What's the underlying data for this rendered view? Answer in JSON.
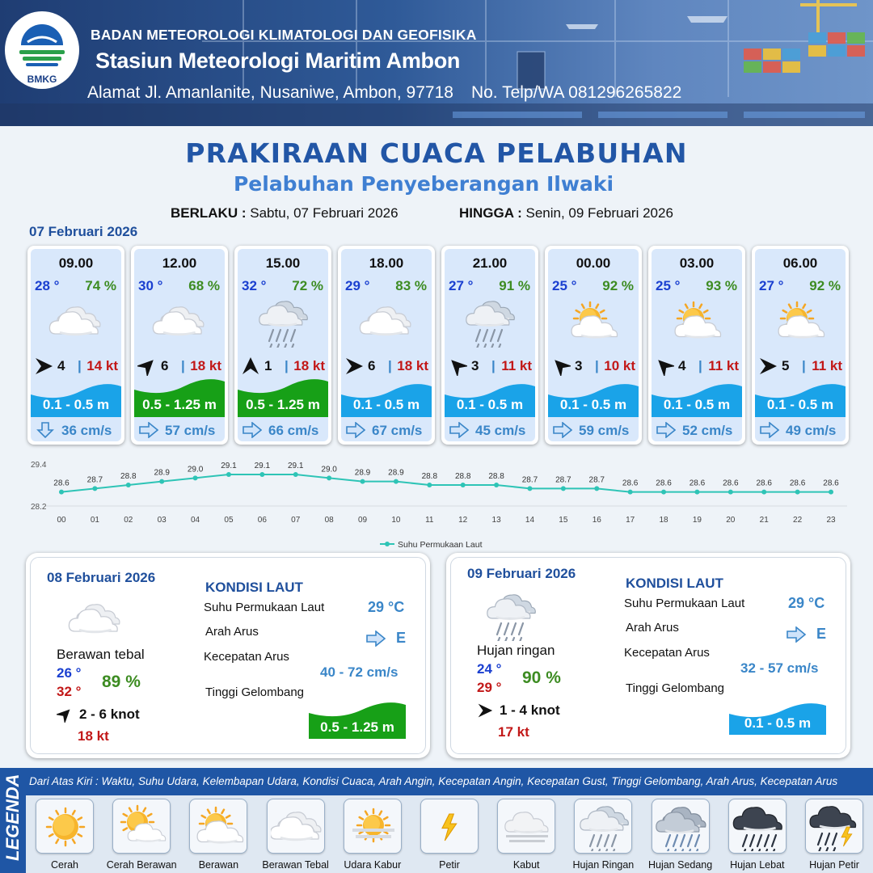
{
  "header": {
    "agency": "BADAN METEOROLOGI KLIMATOLOGI DAN GEOFISIKA",
    "station": "Stasiun Meteorologi Maritim Ambon",
    "address": "Alamat Jl. Amanlanite, Nusaniwe, Ambon, 97718",
    "phone": "No. Telp/WA  081296265822",
    "logo_text": "BMKG"
  },
  "title": "PRAKIRAAN CUACA PELABUHAN",
  "subtitle": "Pelabuhan Penyeberangan Ilwaki",
  "validity": {
    "from_label": "BERLAKU :",
    "from_value": "Sabtu, 07 Februari 2026",
    "to_label": "HINGGA :",
    "to_value": "Senin, 09 Februari 2026"
  },
  "day1_date": "07 Februari 2026",
  "hourly": [
    {
      "time": "09.00",
      "temp": "28 °",
      "hum": "74 %",
      "icon": "berawan-tebal",
      "wind_dir_deg": 90,
      "wind": "4",
      "gust": "14 kt",
      "wave": "0.1 - 0.5 m",
      "wave_level": "low",
      "cur_dir": "down",
      "current": "36 cm/s"
    },
    {
      "time": "12.00",
      "temp": "30 °",
      "hum": "68 %",
      "icon": "berawan-tebal",
      "wind_dir_deg": 45,
      "wind": "6",
      "gust": "18 kt",
      "wave": "0.5 - 1.25 m",
      "wave_level": "moderate",
      "cur_dir": "right",
      "current": "57 cm/s"
    },
    {
      "time": "15.00",
      "temp": "32 °",
      "hum": "72 %",
      "icon": "hujan-ringan",
      "wind_dir_deg": 0,
      "wind": "1",
      "gust": "18 kt",
      "wave": "0.5 - 1.25 m",
      "wave_level": "moderate",
      "cur_dir": "right",
      "current": "66 cm/s"
    },
    {
      "time": "18.00",
      "temp": "29 °",
      "hum": "83 %",
      "icon": "berawan-tebal",
      "wind_dir_deg": 90,
      "wind": "6",
      "gust": "18 kt",
      "wave": "0.1 - 0.5 m",
      "wave_level": "low",
      "cur_dir": "right",
      "current": "67 cm/s"
    },
    {
      "time": "21.00",
      "temp": "27 °",
      "hum": "91 %",
      "icon": "hujan-ringan",
      "wind_dir_deg": 315,
      "wind": "3",
      "gust": "11 kt",
      "wave": "0.1 - 0.5 m",
      "wave_level": "low",
      "cur_dir": "right",
      "current": "45 cm/s"
    },
    {
      "time": "00.00",
      "temp": "25 °",
      "hum": "92 %",
      "icon": "berawan",
      "wind_dir_deg": 315,
      "wind": "3",
      "gust": "10 kt",
      "wave": "0.1 - 0.5 m",
      "wave_level": "low",
      "cur_dir": "right",
      "current": "59 cm/s"
    },
    {
      "time": "03.00",
      "temp": "25 °",
      "hum": "93 %",
      "icon": "berawan",
      "wind_dir_deg": 315,
      "wind": "4",
      "gust": "11 kt",
      "wave": "0.1 - 0.5 m",
      "wave_level": "low",
      "cur_dir": "right",
      "current": "52 cm/s"
    },
    {
      "time": "06.00",
      "temp": "27 °",
      "hum": "92 %",
      "icon": "berawan",
      "wind_dir_deg": 90,
      "wind": "5",
      "gust": "11 kt",
      "wave": "0.1 - 0.5 m",
      "wave_level": "low",
      "cur_dir": "right",
      "current": "49 cm/s"
    }
  ],
  "chart_data": {
    "type": "line",
    "x": [
      "00",
      "01",
      "02",
      "03",
      "04",
      "05",
      "06",
      "07",
      "08",
      "09",
      "10",
      "11",
      "12",
      "13",
      "14",
      "15",
      "16",
      "17",
      "18",
      "19",
      "20",
      "21",
      "22",
      "23"
    ],
    "series": [
      {
        "name": "Suhu Permukaan Laut",
        "values": [
          28.6,
          28.7,
          28.8,
          28.9,
          29.0,
          29.1,
          29.1,
          29.1,
          29.0,
          28.9,
          28.9,
          28.8,
          28.8,
          28.8,
          28.7,
          28.7,
          28.7,
          28.6,
          28.6,
          28.6,
          28.6,
          28.6,
          28.6,
          28.6
        ]
      }
    ],
    "value_labels": [
      "28.6",
      "28.7",
      "28.8",
      "28.9",
      "29.0",
      "29.1",
      "29.1",
      "29.1",
      "29.0",
      "28.9",
      "28.9",
      "28.8",
      "28.8",
      "28.8",
      "28.7",
      "28.7",
      "28.7",
      "28.6",
      "28.6",
      "28.6",
      "28.6",
      "28.6",
      "28.6",
      "28.6"
    ],
    "y_ticks": [
      "29.4",
      "28.2"
    ],
    "ylim": [
      28.2,
      29.4
    ],
    "color": "#2ec4b6",
    "legend": "bottom"
  },
  "days": [
    {
      "date": "08 Februari 2026",
      "icon": "berawan-tebal",
      "condition": "Berawan tebal",
      "tmin": "26 °",
      "tmax": "32 °",
      "hum": "89 %",
      "wind_dir_deg": 45,
      "wind": "2  - 6 knot",
      "gust": "18 kt",
      "sea_title": "KONDISI LAUT",
      "sst_label": "Suhu Permukaan Laut",
      "sst": "29 °C",
      "cur_dir_label": "Arah Arus",
      "cur_dir": "E",
      "cur_spd_label": "Kecepatan Arus",
      "cur_spd": "40 - 72 cm/s",
      "wave_label": "Tinggi Gelombang",
      "wave": "0.5 - 1.25 m",
      "wave_level": "moderate"
    },
    {
      "date": "09 Februari 2026",
      "icon": "hujan-ringan",
      "condition": "Hujan ringan",
      "tmin": "24 °",
      "tmax": "29 °",
      "hum": "90 %",
      "wind_dir_deg": 90,
      "wind": "1  - 4 knot",
      "gust": "17 kt",
      "sea_title": "KONDISI LAUT",
      "sst_label": "Suhu Permukaan Laut",
      "sst": "29 °C",
      "cur_dir_label": "Arah Arus",
      "cur_dir": "E",
      "cur_spd_label": "Kecepatan Arus",
      "cur_spd": "32 - 57 cm/s",
      "wave_label": "Tinggi Gelombang",
      "wave": "0.1 - 0.5 m",
      "wave_level": "low"
    }
  ],
  "legend": {
    "side_label": "LEGENDA",
    "description": "Dari Atas Kiri : Waktu, Suhu Udara, Kelembapan Udara, Kondisi Cuaca, Arah Angin, Kecepatan Angin, Kecepatan Gust, Tinggi Gelombang, Arah Arus, Kecepatan Arus",
    "items": [
      {
        "label": "Cerah",
        "icon": "cerah"
      },
      {
        "label": "Cerah Berawan",
        "icon": "cerah-berawan"
      },
      {
        "label": "Berawan",
        "icon": "berawan"
      },
      {
        "label": "Berawan Tebal",
        "icon": "berawan-tebal"
      },
      {
        "label": "Udara Kabur",
        "icon": "udara-kabur"
      },
      {
        "label": "Petir",
        "icon": "petir"
      },
      {
        "label": "Kabut",
        "icon": "kabut"
      },
      {
        "label": "Hujan Ringan",
        "icon": "hujan-ringan"
      },
      {
        "label": "Hujan Sedang",
        "icon": "hujan-sedang"
      },
      {
        "label": "Hujan Lebat",
        "icon": "hujan-lebat"
      },
      {
        "label": "Hujan Petir",
        "icon": "hujan-petir"
      }
    ]
  },
  "colors": {
    "wave_low": "#1aa3e8",
    "wave_moderate": "#17a017",
    "temp": "#1a3fd0",
    "humidity": "#3d8c22",
    "gust": "#c21818",
    "current": "#3a86c8"
  }
}
